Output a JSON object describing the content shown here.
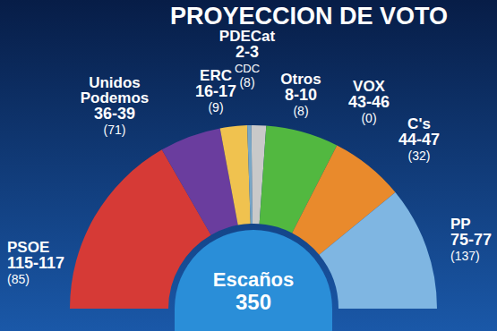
{
  "chart_data": {
    "type": "pie",
    "title": "PROYECCION DE VOTO",
    "categories": [
      "PSOE",
      "Unidos Podemos",
      "ERC",
      "PDECat",
      "Otros",
      "VOX",
      "C's",
      "PP"
    ],
    "min": [
      115,
      36,
      16,
      2,
      8,
      43,
      44,
      75
    ],
    "max": [
      117,
      39,
      17,
      3,
      10,
      46,
      47,
      77
    ],
    "range_labels": [
      "115-117",
      "36-39",
      "16-17",
      "2-3",
      "8-10",
      "43-46",
      "44-47",
      "75-77"
    ],
    "previous": [
      85,
      71,
      9,
      8,
      8,
      0,
      32,
      137
    ],
    "previous_labels": [
      "(85)",
      "(71)",
      "(9)",
      "(8)",
      "(8)",
      "(0)",
      "(32)",
      "(137)"
    ],
    "former_names": [
      null,
      null,
      null,
      "CDC",
      null,
      null,
      null,
      null
    ],
    "colors": [
      "#d63a36",
      "#6a3d9e",
      "#f0c24f",
      "#79a7c6",
      "#c9c9c9",
      "#52b840",
      "#e98a2c",
      "#7fb6e2"
    ],
    "total_label": "Escaños",
    "total": 350
  }
}
